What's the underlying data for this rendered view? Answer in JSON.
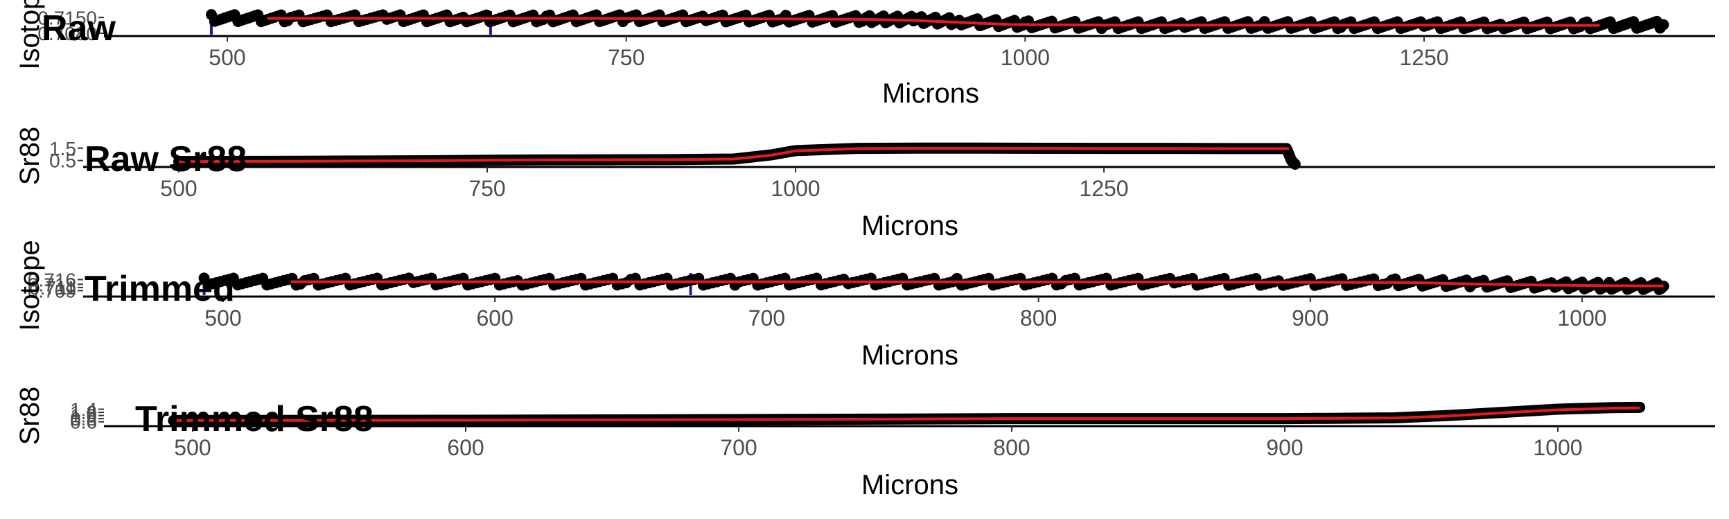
{
  "colors": {
    "points": "#000000",
    "smooth_line": "#e41a1c",
    "marker_line": "#1a1aa6",
    "axis_text": "#4d4d4d",
    "axis_line": "#000000"
  },
  "chart_data": [
    {
      "type": "scatter",
      "title": "Raw",
      "xlabel": "Microns",
      "ylabel": "Isotope",
      "xlim": [
        455,
        1410
      ],
      "ylim": [
        0.708,
        0.716
      ],
      "xticks": [
        "500",
        "750",
        "1000",
        "1250"
      ],
      "xtick_values": [
        500,
        750,
        1000,
        1250
      ],
      "yticks": [
        "0.7080",
        "0.7150"
      ],
      "ytick_values": [
        0.708,
        0.715
      ],
      "grid": false,
      "x_range_points": [
        490,
        1405
      ],
      "vlines": [
        490,
        665
      ],
      "series": [
        {
          "type": "scatter",
          "x": [
            490,
            540,
            600,
            650,
            700,
            750,
            800,
            850,
            900,
            930,
            960,
            1000,
            1050,
            1100,
            1150,
            1200,
            1250,
            1300,
            1350,
            1400
          ],
          "y": [
            0.7148,
            0.7146,
            0.7147,
            0.7146,
            0.7146,
            0.7147,
            0.7146,
            0.7145,
            0.7143,
            0.714,
            0.7132,
            0.712,
            0.7116,
            0.7116,
            0.7117,
            0.7116,
            0.7116,
            0.7115,
            0.7115,
            0.7118
          ]
        },
        {
          "type": "line",
          "x": [
            525,
            600,
            700,
            800,
            900,
            930,
            960,
            990,
            1050,
            1150,
            1250,
            1350,
            1360
          ],
          "y": [
            0.7146,
            0.7146,
            0.7146,
            0.7145,
            0.7142,
            0.7137,
            0.7128,
            0.7119,
            0.7116,
            0.7116,
            0.7116,
            0.7115,
            0.7115
          ]
        }
      ]
    },
    {
      "type": "line",
      "title": "Raw Sr88",
      "xlabel": "Microns",
      "ylabel": "Sr88",
      "xlim": [
        475,
        1410
      ],
      "ylim": [
        0.2,
        1.6
      ],
      "xticks": [
        "500",
        "750",
        "1000",
        "1250"
      ],
      "xtick_values": [
        500,
        750,
        1000,
        1250
      ],
      "yticks": [
        "0.5",
        "1.5"
      ],
      "ytick_values": [
        0.5,
        1.5
      ],
      "grid": false,
      "series": [
        {
          "type": "area",
          "x": [
            500,
            550,
            600,
            650,
            700,
            750,
            800,
            850,
            900,
            950,
            980,
            1000,
            1050,
            1100,
            1150,
            1200,
            1250,
            1300,
            1350,
            1380,
            1398,
            1402,
            1405
          ],
          "y": [
            0.42,
            0.43,
            0.44,
            0.46,
            0.48,
            0.52,
            0.55,
            0.56,
            0.57,
            0.62,
            0.95,
            1.3,
            1.48,
            1.5,
            1.5,
            1.49,
            1.48,
            1.48,
            1.47,
            1.47,
            1.47,
            0.5,
            0.2
          ]
        },
        {
          "type": "line",
          "x": [
            500,
            550,
            600,
            650,
            700,
            750,
            800,
            850,
            900,
            950,
            980,
            1000,
            1050,
            1100,
            1150,
            1200,
            1250,
            1300,
            1350,
            1400
          ],
          "y": [
            0.42,
            0.43,
            0.44,
            0.46,
            0.48,
            0.52,
            0.55,
            0.56,
            0.57,
            0.62,
            0.92,
            1.28,
            1.46,
            1.49,
            1.49,
            1.48,
            1.47,
            1.47,
            1.46,
            1.46
          ]
        }
      ]
    },
    {
      "type": "scatter",
      "title": "Trimmed",
      "xlabel": "Microns",
      "ylabel": "Isotope",
      "xlim": [
        467,
        1057
      ],
      "ylim": [
        0.707,
        0.7175
      ],
      "xticks": [
        "500",
        "600",
        "700",
        "800",
        "900",
        "1000"
      ],
      "xtick_values": [
        500,
        600,
        700,
        800,
        900,
        1000
      ],
      "yticks": [
        "0.709",
        "0.711",
        "0.713",
        "0.716"
      ],
      "ytick_values": [
        0.709,
        0.711,
        0.713,
        0.716
      ],
      "grid": false,
      "vlines": [
        493,
        672
      ],
      "series": [
        {
          "type": "scatter",
          "x": [
            493,
            530,
            570,
            610,
            650,
            690,
            730,
            770,
            810,
            850,
            890,
            930,
            960,
            990,
            1010,
            1030
          ],
          "y": [
            0.7148,
            0.7146,
            0.7148,
            0.7146,
            0.7147,
            0.7146,
            0.7148,
            0.7146,
            0.7147,
            0.7146,
            0.7145,
            0.7143,
            0.7135,
            0.7125,
            0.712,
            0.7118
          ]
        },
        {
          "type": "line",
          "x": [
            525,
            600,
            700,
            800,
            900,
            940,
            960,
            990,
            1010,
            1030
          ],
          "y": [
            0.7146,
            0.7146,
            0.7146,
            0.7145,
            0.7143,
            0.714,
            0.7132,
            0.7124,
            0.7121,
            0.712
          ]
        }
      ]
    },
    {
      "type": "line",
      "title": "Trimmed Sr88",
      "xlabel": "Microns",
      "ylabel": "Sr88",
      "xlim": [
        465,
        1058
      ],
      "ylim": [
        0.5,
        1.6
      ],
      "xticks": [
        "500",
        "600",
        "700",
        "800",
        "900",
        "1000"
      ],
      "xtick_values": [
        500,
        600,
        700,
        800,
        900,
        1000
      ],
      "yticks": [
        "0.6",
        "0.8",
        "1.0",
        "1.2",
        "1.4"
      ],
      "ytick_values": [
        0.6,
        0.8,
        1.0,
        1.2,
        1.4
      ],
      "grid": false,
      "series": [
        {
          "type": "area",
          "x": [
            493,
            550,
            600,
            650,
            700,
            750,
            800,
            850,
            900,
            940,
            960,
            980,
            1000,
            1020,
            1030
          ],
          "y": [
            0.68,
            0.69,
            0.7,
            0.72,
            0.74,
            0.77,
            0.8,
            0.8,
            0.8,
            0.85,
            1.0,
            1.2,
            1.4,
            1.5,
            1.52
          ]
        },
        {
          "type": "line",
          "x": [
            493,
            550,
            600,
            650,
            700,
            750,
            800,
            850,
            900,
            940,
            960,
            980,
            1000,
            1020,
            1030
          ],
          "y": [
            0.68,
            0.69,
            0.7,
            0.72,
            0.74,
            0.77,
            0.8,
            0.8,
            0.8,
            0.84,
            0.97,
            1.17,
            1.36,
            1.46,
            1.48
          ]
        }
      ]
    }
  ]
}
